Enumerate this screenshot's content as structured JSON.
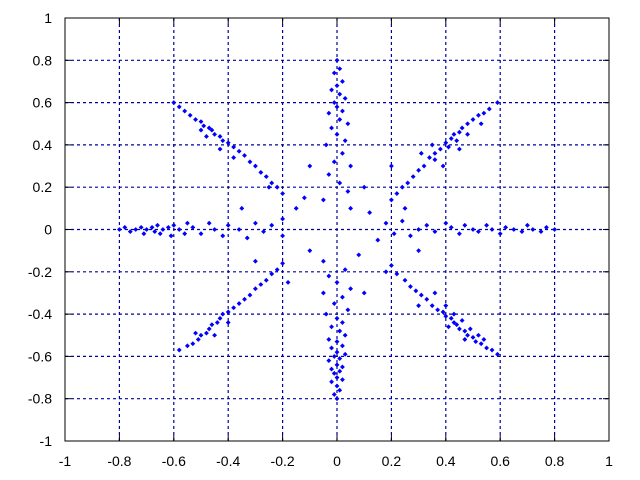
{
  "chart_data": {
    "type": "scatter",
    "title": "",
    "xlabel": "",
    "ylabel": "",
    "xlim": [
      -1,
      1
    ],
    "ylim": [
      -1,
      1
    ],
    "grid": true,
    "legend": "none",
    "x_ticks": [
      "-1",
      "-0.8",
      "-0.6",
      "-0.4",
      "-0.2",
      "0",
      "0.2",
      "0.4",
      "0.6",
      "0.8",
      "1"
    ],
    "y_ticks": [
      "-1",
      "-0.8",
      "-0.6",
      "-0.4",
      "-0.2",
      "0",
      "0.2",
      "0.4",
      "0.6",
      "0.8",
      "1"
    ],
    "x_tick_values": [
      -1,
      -0.8,
      -0.6,
      -0.4,
      -0.2,
      0,
      0.2,
      0.4,
      0.6,
      0.8,
      1
    ],
    "y_tick_values": [
      -1,
      -0.8,
      -0.6,
      -0.4,
      -0.2,
      0,
      0.2,
      0.4,
      0.6,
      0.8,
      1
    ],
    "colors": {
      "points": "#0000ff",
      "grid": "#0000a0",
      "frame": "#000000"
    },
    "series": [
      {
        "values": [
          [
            0.0,
            0.8
          ],
          [
            0.01,
            0.76
          ],
          [
            -0.01,
            0.74
          ],
          [
            0.02,
            0.7
          ],
          [
            0.0,
            0.68
          ],
          [
            -0.02,
            0.66
          ],
          [
            0.01,
            0.64
          ],
          [
            0.03,
            0.62
          ],
          [
            -0.01,
            0.6
          ],
          [
            0.0,
            0.58
          ],
          [
            0.02,
            0.56
          ],
          [
            -0.03,
            0.55
          ],
          [
            0.01,
            0.52
          ],
          [
            0.04,
            0.5
          ],
          [
            -0.02,
            0.48
          ],
          [
            0.0,
            0.45
          ],
          [
            0.03,
            0.42
          ],
          [
            -0.04,
            0.4
          ],
          [
            0.02,
            0.36
          ],
          [
            -0.01,
            0.32
          ],
          [
            0.05,
            0.3
          ],
          [
            -0.03,
            0.26
          ],
          [
            0.01,
            0.22
          ],
          [
            0.04,
            0.18
          ],
          [
            -0.05,
            0.14
          ],
          [
            0.59,
            0.6
          ],
          [
            0.56,
            0.57
          ],
          [
            0.54,
            0.55
          ],
          [
            0.52,
            0.54
          ],
          [
            0.5,
            0.52
          ],
          [
            0.48,
            0.5
          ],
          [
            0.46,
            0.48
          ],
          [
            0.45,
            0.46
          ],
          [
            0.43,
            0.45
          ],
          [
            0.42,
            0.43
          ],
          [
            0.44,
            0.42
          ],
          [
            0.4,
            0.41
          ],
          [
            0.41,
            0.39
          ],
          [
            0.38,
            0.38
          ],
          [
            0.36,
            0.36
          ],
          [
            0.34,
            0.34
          ],
          [
            0.36,
            0.33
          ],
          [
            0.32,
            0.3
          ],
          [
            0.3,
            0.28
          ],
          [
            0.28,
            0.25
          ],
          [
            0.26,
            0.22
          ],
          [
            0.24,
            0.2
          ],
          [
            0.22,
            0.17
          ],
          [
            0.35,
            0.4
          ],
          [
            0.48,
            0.45
          ],
          [
            0.53,
            0.5
          ],
          [
            0.39,
            0.3
          ],
          [
            0.31,
            0.36
          ],
          [
            0.2,
            0.14
          ],
          [
            0.45,
            0.38
          ],
          [
            0.8,
            0.0
          ],
          [
            0.77,
            0.01
          ],
          [
            0.75,
            -0.01
          ],
          [
            0.72,
            0.0
          ],
          [
            0.7,
            0.02
          ],
          [
            0.68,
            -0.01
          ],
          [
            0.65,
            0.0
          ],
          [
            0.62,
            0.01
          ],
          [
            0.6,
            -0.02
          ],
          [
            0.57,
            0.0
          ],
          [
            0.55,
            0.02
          ],
          [
            0.52,
            -0.01
          ],
          [
            0.5,
            0.0
          ],
          [
            0.47,
            0.02
          ],
          [
            0.45,
            -0.02
          ],
          [
            0.42,
            0.01
          ],
          [
            0.4,
            0.03
          ],
          [
            0.36,
            -0.01
          ],
          [
            0.33,
            0.02
          ],
          [
            0.3,
            0.0
          ],
          [
            0.27,
            -0.03
          ],
          [
            0.24,
            0.04
          ],
          [
            0.21,
            -0.02
          ],
          [
            0.18,
            0.03
          ],
          [
            0.59,
            -0.59
          ],
          [
            0.57,
            -0.57
          ],
          [
            0.55,
            -0.56
          ],
          [
            0.53,
            -0.54
          ],
          [
            0.51,
            -0.53
          ],
          [
            0.5,
            -0.51
          ],
          [
            0.48,
            -0.5
          ],
          [
            0.47,
            -0.48
          ],
          [
            0.45,
            -0.47
          ],
          [
            0.44,
            -0.45
          ],
          [
            0.43,
            -0.44
          ],
          [
            0.42,
            -0.42
          ],
          [
            0.4,
            -0.41
          ],
          [
            0.39,
            -0.39
          ],
          [
            0.41,
            -0.46
          ],
          [
            0.46,
            -0.43
          ],
          [
            0.49,
            -0.47
          ],
          [
            0.52,
            -0.5
          ],
          [
            0.37,
            -0.38
          ],
          [
            0.35,
            -0.36
          ],
          [
            0.33,
            -0.33
          ],
          [
            0.31,
            -0.31
          ],
          [
            0.29,
            -0.29
          ],
          [
            0.27,
            -0.27
          ],
          [
            0.25,
            -0.24
          ],
          [
            0.22,
            -0.21
          ],
          [
            0.36,
            -0.3
          ],
          [
            0.3,
            -0.36
          ],
          [
            0.43,
            -0.4
          ],
          [
            0.4,
            -0.36
          ],
          [
            0.47,
            -0.52
          ],
          [
            0.54,
            -0.52
          ],
          [
            0.2,
            -0.17
          ],
          [
            0.0,
            -0.8
          ],
          [
            -0.01,
            -0.78
          ],
          [
            0.01,
            -0.76
          ],
          [
            0.0,
            -0.74
          ],
          [
            -0.02,
            -0.72
          ],
          [
            0.02,
            -0.71
          ],
          [
            0.0,
            -0.7
          ],
          [
            -0.01,
            -0.68
          ],
          [
            0.01,
            -0.67
          ],
          [
            -0.02,
            -0.66
          ],
          [
            0.02,
            -0.65
          ],
          [
            0.0,
            -0.64
          ],
          [
            -0.03,
            -0.62
          ],
          [
            0.01,
            -0.61
          ],
          [
            -0.01,
            -0.6
          ],
          [
            0.03,
            -0.59
          ],
          [
            0.0,
            -0.58
          ],
          [
            -0.02,
            -0.56
          ],
          [
            0.02,
            -0.55
          ],
          [
            0.0,
            -0.53
          ],
          [
            -0.03,
            -0.52
          ],
          [
            0.03,
            -0.5
          ],
          [
            0.01,
            -0.48
          ],
          [
            -0.02,
            -0.46
          ],
          [
            0.02,
            -0.44
          ],
          [
            0.0,
            -0.42
          ],
          [
            -0.04,
            -0.4
          ],
          [
            0.04,
            -0.38
          ],
          [
            -0.01,
            -0.35
          ],
          [
            0.02,
            -0.32
          ],
          [
            -0.05,
            -0.3
          ],
          [
            0.05,
            -0.28
          ],
          [
            0.0,
            -0.25
          ],
          [
            -0.03,
            -0.22
          ],
          [
            0.03,
            -0.19
          ],
          [
            -0.58,
            -0.57
          ],
          [
            -0.55,
            -0.55
          ],
          [
            -0.53,
            -0.54
          ],
          [
            -0.51,
            -0.52
          ],
          [
            -0.5,
            -0.5
          ],
          [
            -0.48,
            -0.49
          ],
          [
            -0.47,
            -0.47
          ],
          [
            -0.46,
            -0.45
          ],
          [
            -0.44,
            -0.44
          ],
          [
            -0.43,
            -0.42
          ],
          [
            -0.42,
            -0.4
          ],
          [
            -0.4,
            -0.39
          ],
          [
            -0.38,
            -0.37
          ],
          [
            -0.36,
            -0.35
          ],
          [
            -0.34,
            -0.33
          ],
          [
            -0.32,
            -0.31
          ],
          [
            -0.3,
            -0.28
          ],
          [
            -0.28,
            -0.26
          ],
          [
            -0.26,
            -0.24
          ],
          [
            -0.24,
            -0.21
          ],
          [
            -0.22,
            -0.19
          ],
          [
            -0.2,
            -0.16
          ],
          [
            -0.45,
            -0.5
          ],
          [
            -0.52,
            -0.49
          ],
          [
            -0.4,
            -0.44
          ],
          [
            -0.8,
            0.0
          ],
          [
            -0.78,
            0.01
          ],
          [
            -0.76,
            -0.01
          ],
          [
            -0.74,
            0.0
          ],
          [
            -0.72,
            0.01
          ],
          [
            -0.71,
            -0.02
          ],
          [
            -0.7,
            0.0
          ],
          [
            -0.68,
            0.01
          ],
          [
            -0.67,
            -0.01
          ],
          [
            -0.66,
            0.02
          ],
          [
            -0.65,
            -0.02
          ],
          [
            -0.64,
            0.0
          ],
          [
            -0.62,
            0.01
          ],
          [
            -0.61,
            -0.03
          ],
          [
            -0.6,
            0.02
          ],
          [
            -0.58,
            0.0
          ],
          [
            -0.56,
            -0.02
          ],
          [
            -0.55,
            0.03
          ],
          [
            -0.53,
            0.01
          ],
          [
            -0.5,
            -0.02
          ],
          [
            -0.47,
            0.03
          ],
          [
            -0.45,
            0.0
          ],
          [
            -0.42,
            -0.03
          ],
          [
            -0.4,
            0.02
          ],
          [
            -0.36,
            0.0
          ],
          [
            -0.33,
            -0.04
          ],
          [
            -0.3,
            0.03
          ],
          [
            -0.27,
            -0.01
          ],
          [
            -0.24,
            0.02
          ],
          [
            -0.2,
            -0.03
          ],
          [
            -0.6,
            0.6
          ],
          [
            -0.58,
            0.58
          ],
          [
            -0.56,
            0.56
          ],
          [
            -0.54,
            0.54
          ],
          [
            -0.52,
            0.52
          ],
          [
            -0.5,
            0.51
          ],
          [
            -0.49,
            0.49
          ],
          [
            -0.47,
            0.48
          ],
          [
            -0.46,
            0.47
          ],
          [
            -0.45,
            0.45
          ],
          [
            -0.43,
            0.44
          ],
          [
            -0.42,
            0.42
          ],
          [
            -0.4,
            0.41
          ],
          [
            -0.38,
            0.39
          ],
          [
            -0.36,
            0.37
          ],
          [
            -0.34,
            0.35
          ],
          [
            -0.32,
            0.32
          ],
          [
            -0.3,
            0.3
          ],
          [
            -0.28,
            0.27
          ],
          [
            -0.26,
            0.25
          ],
          [
            -0.24,
            0.22
          ],
          [
            -0.22,
            0.2
          ],
          [
            -0.2,
            0.17
          ],
          [
            -0.48,
            0.44
          ],
          [
            -0.43,
            0.38
          ],
          [
            -0.5,
            0.47
          ],
          [
            -0.38,
            0.34
          ],
          [
            -0.15,
            0.1
          ],
          [
            0.12,
            0.08
          ],
          [
            0.08,
            -0.12
          ],
          [
            -0.1,
            -0.1
          ],
          [
            0.15,
            -0.05
          ],
          [
            -0.12,
            0.15
          ],
          [
            0.1,
            0.2
          ],
          [
            -0.2,
            0.05
          ],
          [
            0.05,
            0.1
          ],
          [
            -0.05,
            -0.15
          ],
          [
            0.18,
            -0.2
          ],
          [
            -0.18,
            -0.25
          ],
          [
            0.25,
            0.1
          ],
          [
            -0.25,
            0.2
          ],
          [
            0.2,
            0.3
          ],
          [
            -0.1,
            0.3
          ],
          [
            0.3,
            -0.1
          ],
          [
            -0.3,
            -0.15
          ],
          [
            0.1,
            -0.3
          ],
          [
            -0.35,
            0.1
          ]
        ]
      }
    ]
  }
}
